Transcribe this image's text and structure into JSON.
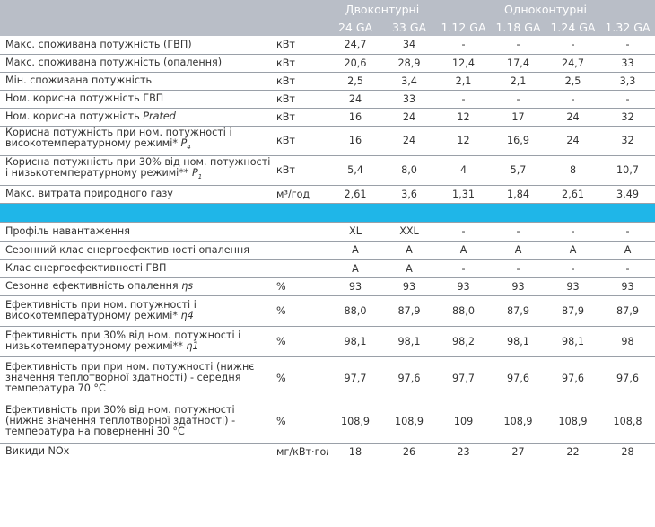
{
  "groups": {
    "dual": "Двоконтурні",
    "single": "Одноконтурні"
  },
  "models": [
    "24 GA",
    "33 GA",
    "1.12 GA",
    "1.18 GA",
    "1.24 GA",
    "1.32 GA"
  ],
  "rows1": [
    {
      "label": "Макс. споживана потужність (ГВП)",
      "unit": "кВт",
      "values": [
        "24,7",
        "34",
        "-",
        "-",
        "-",
        "-"
      ]
    },
    {
      "label": "Макс. споживана потужність (опалення)",
      "unit": "кВт",
      "values": [
        "20,6",
        "28,9",
        "12,4",
        "17,4",
        "24,7",
        "33"
      ]
    },
    {
      "label": "Мін. споживана потужність",
      "unit": "кВт",
      "values": [
        "2,5",
        "3,4",
        "2,1",
        "2,1",
        "2,5",
        "3,3"
      ]
    },
    {
      "label": "Ном. корисна потужність ГВП",
      "unit": "кВт",
      "values": [
        "24",
        "33",
        "-",
        "-",
        "-",
        "-"
      ]
    },
    {
      "label": "Ном. корисна потужність Prated",
      "unit": "кВт",
      "values": [
        "16",
        "24",
        "12",
        "17",
        "24",
        "32"
      ]
    },
    {
      "label": "Корисна потужність при ном. потужності і високотемпературному режимі* P4",
      "unit": "кВт",
      "values": [
        "16",
        "24",
        "12",
        "16,9",
        "24",
        "32"
      ]
    },
    {
      "label": "Корисна потужність при 30% від ном. потужності і низькотемпературному режимі** P1",
      "unit": "кВт",
      "values": [
        "5,4",
        "8,0",
        "4",
        "5,7",
        "8",
        "10,7"
      ]
    },
    {
      "label": "Макс. витрата природного газу",
      "unit": "м³/год",
      "values": [
        "2,61",
        "3,6",
        "1,31",
        "1,84",
        "2,61",
        "3,49"
      ]
    }
  ],
  "rows2": [
    {
      "label": "Профіль навантаження",
      "unit": "",
      "values": [
        "XL",
        "XXL",
        "-",
        "-",
        "-",
        "-"
      ]
    },
    {
      "label": "Сезонний клас енергоефективності опалення",
      "unit": "",
      "values": [
        "A",
        "A",
        "A",
        "A",
        "A",
        "A"
      ]
    },
    {
      "label": "Клас енергоефективності ГВП",
      "unit": "",
      "values": [
        "A",
        "A",
        "-",
        "-",
        "-",
        "-"
      ]
    },
    {
      "label": "Сезонна ефективність опалення ηs",
      "unit": "%",
      "values": [
        "93",
        "93",
        "93",
        "93",
        "93",
        "93"
      ]
    },
    {
      "label": "Ефективність при ном. потужності і високотемпературному режимі* η4",
      "unit": "%",
      "values": [
        "88,0",
        "87,9",
        "88,0",
        "87,9",
        "87,9",
        "87,9"
      ]
    },
    {
      "label": "Ефективність при 30% від ном. потужності і низькотемпературному режимі** η1",
      "unit": "%",
      "values": [
        "98,1",
        "98,1",
        "98,2",
        "98,1",
        "98,1",
        "98"
      ]
    },
    {
      "label": "Ефективність при при ном. потужності (нижнє значення теплотворної здатності) - середня температура 70 °C",
      "unit": "%",
      "values": [
        "97,7",
        "97,6",
        "97,7",
        "97,6",
        "97,6",
        "97,6"
      ]
    },
    {
      "label": "Ефективність при 30% від ном. потужності (нижнє значення теплотворної здатності) - температура на поверненні 30 °C",
      "unit": "%",
      "values": [
        "108,9",
        "108,9",
        "109",
        "108,9",
        "108,9",
        "108,8"
      ]
    },
    {
      "label": "Викиди NOx",
      "unit": "мг/кВт·год",
      "values": [
        "18",
        "26",
        "23",
        "27",
        "22",
        "28"
      ]
    }
  ]
}
